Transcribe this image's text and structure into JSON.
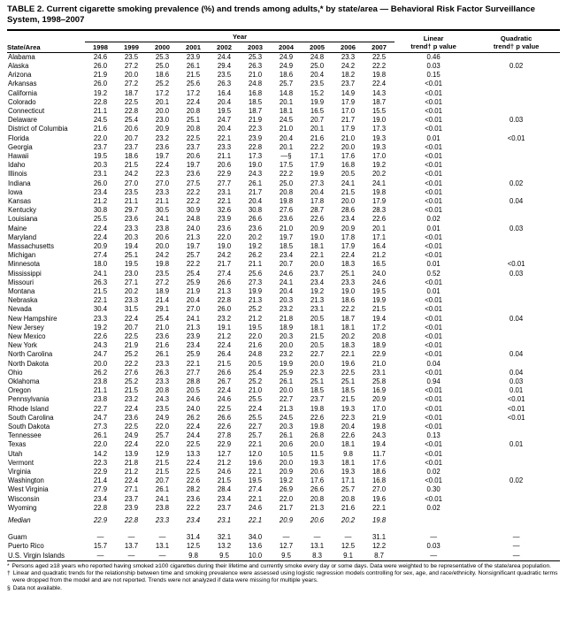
{
  "page": {
    "title": "TABLE 2. Current cigarette smoking prevalence (%) and trends among adults,* by state/area — Behavioral Risk Factor Surveillance System, 1998–2007"
  },
  "table": {
    "state_col_label": "State/Area",
    "year_group_label": "Year",
    "year_headers": [
      "1998",
      "1999",
      "2000",
      "2001",
      "2002",
      "2003",
      "2004",
      "2005",
      "2006",
      "2007"
    ],
    "linear_label": "Linear\ntrend† p value",
    "quadratic_label": "Quadratic\ntrend† p value",
    "rows": [
      {
        "state": "Alabama",
        "values": [
          "24.6",
          "23.5",
          "25.3",
          "23.9",
          "24.4",
          "25.3",
          "24.9",
          "24.8",
          "23.3",
          "22.5"
        ],
        "linear": "0.46",
        "quadratic": ""
      },
      {
        "state": "Alaska",
        "values": [
          "26.0",
          "27.2",
          "25.0",
          "26.1",
          "29.4",
          "26.3",
          "24.9",
          "25.0",
          "24.2",
          "22.2"
        ],
        "linear": "0.03",
        "quadratic": "0.02"
      },
      {
        "state": "Arizona",
        "values": [
          "21.9",
          "20.0",
          "18.6",
          "21.5",
          "23.5",
          "21.0",
          "18.6",
          "20.4",
          "18.2",
          "19.8"
        ],
        "linear": "0.15",
        "quadratic": ""
      },
      {
        "state": "Arkansas",
        "values": [
          "26.0",
          "27.2",
          "25.2",
          "25.6",
          "26.3",
          "24.8",
          "25.7",
          "23.5",
          "23.7",
          "22.4"
        ],
        "linear": "<0.01",
        "quadratic": ""
      },
      {
        "state": "California",
        "values": [
          "19.2",
          "18.7",
          "17.2",
          "17.2",
          "16.4",
          "16.8",
          "14.8",
          "15.2",
          "14.9",
          "14.3"
        ],
        "linear": "<0.01",
        "quadratic": ""
      },
      {
        "state": "Colorado",
        "values": [
          "22.8",
          "22.5",
          "20.1",
          "22.4",
          "20.4",
          "18.5",
          "20.1",
          "19.9",
          "17.9",
          "18.7"
        ],
        "linear": "<0.01",
        "quadratic": ""
      },
      {
        "state": "Connecticut",
        "values": [
          "21.1",
          "22.8",
          "20.0",
          "20.8",
          "19.5",
          "18.7",
          "18.1",
          "16.5",
          "17.0",
          "15.5"
        ],
        "linear": "<0.01",
        "quadratic": ""
      },
      {
        "state": "Delaware",
        "values": [
          "24.5",
          "25.4",
          "23.0",
          "25.1",
          "24.7",
          "21.9",
          "24.5",
          "20.7",
          "21.7",
          "19.0"
        ],
        "linear": "<0.01",
        "quadratic": "0.03"
      },
      {
        "state": "District of Columbia",
        "values": [
          "21.6",
          "20.6",
          "20.9",
          "20.8",
          "20.4",
          "22.3",
          "21.0",
          "20.1",
          "17.9",
          "17.3"
        ],
        "linear": "<0.01",
        "quadratic": ""
      },
      {
        "state": "Florida",
        "values": [
          "22.0",
          "20.7",
          "23.2",
          "22.5",
          "22.1",
          "23.9",
          "20.4",
          "21.6",
          "21.0",
          "19.3"
        ],
        "linear": "0.01",
        "quadratic": "<0.01"
      },
      {
        "state": "Georgia",
        "values": [
          "23.7",
          "23.7",
          "23.6",
          "23.7",
          "23.3",
          "22.8",
          "20.1",
          "22.2",
          "20.0",
          "19.3"
        ],
        "linear": "<0.01",
        "quadratic": ""
      },
      {
        "state": "Hawaii",
        "values": [
          "19.5",
          "18.6",
          "19.7",
          "20.6",
          "21.1",
          "17.3",
          "—§",
          "17.1",
          "17.6",
          "17.0"
        ],
        "linear": "<0.01",
        "quadratic": ""
      },
      {
        "state": "Idaho",
        "values": [
          "20.3",
          "21.5",
          "22.4",
          "19.7",
          "20.6",
          "19.0",
          "17.5",
          "17.9",
          "16.8",
          "19.2"
        ],
        "linear": "<0.01",
        "quadratic": ""
      },
      {
        "state": "Illinois",
        "values": [
          "23.1",
          "24.2",
          "22.3",
          "23.6",
          "22.9",
          "24.3",
          "22.2",
          "19.9",
          "20.5",
          "20.2"
        ],
        "linear": "<0.01",
        "quadratic": ""
      },
      {
        "state": "Indiana",
        "values": [
          "26.0",
          "27.0",
          "27.0",
          "27.5",
          "27.7",
          "26.1",
          "25.0",
          "27.3",
          "24.1",
          "24.1"
        ],
        "linear": "<0.01",
        "quadratic": "0.02"
      },
      {
        "state": "Iowa",
        "values": [
          "23.4",
          "23.5",
          "23.3",
          "22.2",
          "23.1",
          "21.7",
          "20.8",
          "20.4",
          "21.5",
          "19.8"
        ],
        "linear": "<0.01",
        "quadratic": ""
      },
      {
        "state": "Kansas",
        "values": [
          "21.2",
          "21.1",
          "21.1",
          "22.2",
          "22.1",
          "20.4",
          "19.8",
          "17.8",
          "20.0",
          "17.9"
        ],
        "linear": "<0.01",
        "quadratic": "0.04"
      },
      {
        "state": "Kentucky",
        "values": [
          "30.8",
          "29.7",
          "30.5",
          "30.9",
          "32.6",
          "30.8",
          "27.6",
          "28.7",
          "28.6",
          "28.3"
        ],
        "linear": "<0.01",
        "quadratic": ""
      },
      {
        "state": "Louisiana",
        "values": [
          "25.5",
          "23.6",
          "24.1",
          "24.8",
          "23.9",
          "26.6",
          "23.6",
          "22.6",
          "23.4",
          "22.6"
        ],
        "linear": "0.02",
        "quadratic": ""
      },
      {
        "state": "Maine",
        "values": [
          "22.4",
          "23.3",
          "23.8",
          "24.0",
          "23.6",
          "23.6",
          "21.0",
          "20.9",
          "20.9",
          "20.1"
        ],
        "linear": "0.01",
        "quadratic": "0.03"
      },
      {
        "state": "Maryland",
        "values": [
          "22.4",
          "20.3",
          "20.6",
          "21.3",
          "22.0",
          "20.2",
          "19.7",
          "19.0",
          "17.8",
          "17.1"
        ],
        "linear": "<0.01",
        "quadratic": ""
      },
      {
        "state": "Massachusetts",
        "values": [
          "20.9",
          "19.4",
          "20.0",
          "19.7",
          "19.0",
          "19.2",
          "18.5",
          "18.1",
          "17.9",
          "16.4"
        ],
        "linear": "<0.01",
        "quadratic": ""
      },
      {
        "state": "Michigan",
        "values": [
          "27.4",
          "25.1",
          "24.2",
          "25.7",
          "24.2",
          "26.2",
          "23.4",
          "22.1",
          "22.4",
          "21.2"
        ],
        "linear": "<0.01",
        "quadratic": ""
      },
      {
        "state": "Minnesota",
        "values": [
          "18.0",
          "19.5",
          "19.8",
          "22.2",
          "21.7",
          "21.1",
          "20.7",
          "20.0",
          "18.3",
          "16.5"
        ],
        "linear": "0.01",
        "quadratic": "<0.01"
      },
      {
        "state": "Mississippi",
        "values": [
          "24.1",
          "23.0",
          "23.5",
          "25.4",
          "27.4",
          "25.6",
          "24.6",
          "23.7",
          "25.1",
          "24.0"
        ],
        "linear": "0.52",
        "quadratic": "0.03"
      },
      {
        "state": "Missouri",
        "values": [
          "26.3",
          "27.1",
          "27.2",
          "25.9",
          "26.6",
          "27.3",
          "24.1",
          "23.4",
          "23.3",
          "24.6"
        ],
        "linear": "<0.01",
        "quadratic": ""
      },
      {
        "state": "Montana",
        "values": [
          "21.5",
          "20.2",
          "18.9",
          "21.9",
          "21.3",
          "19.9",
          "20.4",
          "19.2",
          "19.0",
          "19.5"
        ],
        "linear": "0.01",
        "quadratic": ""
      },
      {
        "state": "Nebraska",
        "values": [
          "22.1",
          "23.3",
          "21.4",
          "20.4",
          "22.8",
          "21.3",
          "20.3",
          "21.3",
          "18.6",
          "19.9"
        ],
        "linear": "<0.01",
        "quadratic": ""
      },
      {
        "state": "Nevada",
        "values": [
          "30.4",
          "31.5",
          "29.1",
          "27.0",
          "26.0",
          "25.2",
          "23.2",
          "23.1",
          "22.2",
          "21.5"
        ],
        "linear": "<0.01",
        "quadratic": ""
      },
      {
        "state": "New Hampshire",
        "values": [
          "23.3",
          "22.4",
          "25.4",
          "24.1",
          "23.2",
          "21.2",
          "21.8",
          "20.5",
          "18.7",
          "19.4"
        ],
        "linear": "<0.01",
        "quadratic": "0.04"
      },
      {
        "state": "New Jersey",
        "values": [
          "19.2",
          "20.7",
          "21.0",
          "21.3",
          "19.1",
          "19.5",
          "18.9",
          "18.1",
          "18.1",
          "17.2"
        ],
        "linear": "<0.01",
        "quadratic": ""
      },
      {
        "state": "New Mexico",
        "values": [
          "22.6",
          "22.5",
          "23.6",
          "23.9",
          "21.2",
          "22.0",
          "20.3",
          "21.5",
          "20.2",
          "20.8"
        ],
        "linear": "<0.01",
        "quadratic": ""
      },
      {
        "state": "New York",
        "values": [
          "24.3",
          "21.9",
          "21.6",
          "23.4",
          "22.4",
          "21.6",
          "20.0",
          "20.5",
          "18.3",
          "18.9"
        ],
        "linear": "<0.01",
        "quadratic": ""
      },
      {
        "state": "North Carolina",
        "values": [
          "24.7",
          "25.2",
          "26.1",
          "25.9",
          "26.4",
          "24.8",
          "23.2",
          "22.7",
          "22.1",
          "22.9"
        ],
        "linear": "<0.01",
        "quadratic": "0.04"
      },
      {
        "state": "North Dakota",
        "values": [
          "20.0",
          "22.2",
          "23.3",
          "22.1",
          "21.5",
          "20.5",
          "19.9",
          "20.0",
          "19.6",
          "21.0"
        ],
        "linear": "0.04",
        "quadratic": ""
      },
      {
        "state": "Ohio",
        "values": [
          "26.2",
          "27.6",
          "26.3",
          "27.7",
          "26.6",
          "25.4",
          "25.9",
          "22.3",
          "22.5",
          "23.1"
        ],
        "linear": "<0.01",
        "quadratic": "0.04"
      },
      {
        "state": "Oklahoma",
        "values": [
          "23.8",
          "25.2",
          "23.3",
          "28.8",
          "26.7",
          "25.2",
          "26.1",
          "25.1",
          "25.1",
          "25.8"
        ],
        "linear": "0.94",
        "quadratic": "0.03"
      },
      {
        "state": "Oregon",
        "values": [
          "21.1",
          "21.5",
          "20.8",
          "20.5",
          "22.4",
          "21.0",
          "20.0",
          "18.5",
          "18.5",
          "16.9"
        ],
        "linear": "<0.01",
        "quadratic": "0.01"
      },
      {
        "state": "Pennsylvania",
        "values": [
          "23.8",
          "23.2",
          "24.3",
          "24.6",
          "24.6",
          "25.5",
          "22.7",
          "23.7",
          "21.5",
          "20.9"
        ],
        "linear": "<0.01",
        "quadratic": "<0.01"
      },
      {
        "state": "Rhode Island",
        "values": [
          "22.7",
          "22.4",
          "23.5",
          "24.0",
          "22.5",
          "22.4",
          "21.3",
          "19.8",
          "19.3",
          "17.0"
        ],
        "linear": "<0.01",
        "quadratic": "<0.01"
      },
      {
        "state": "South Carolina",
        "values": [
          "24.7",
          "23.6",
          "24.9",
          "26.2",
          "26.6",
          "25.5",
          "24.5",
          "22.6",
          "22.3",
          "21.9"
        ],
        "linear": "<0.01",
        "quadratic": "<0.01"
      },
      {
        "state": "South Dakota",
        "values": [
          "27.3",
          "22.5",
          "22.0",
          "22.4",
          "22.6",
          "22.7",
          "20.3",
          "19.8",
          "20.4",
          "19.8"
        ],
        "linear": "<0.01",
        "quadratic": ""
      },
      {
        "state": "Tennessee",
        "values": [
          "26.1",
          "24.9",
          "25.7",
          "24.4",
          "27.8",
          "25.7",
          "26.1",
          "26.8",
          "22.6",
          "24.3"
        ],
        "linear": "0.13",
        "quadratic": ""
      },
      {
        "state": "Texas",
        "values": [
          "22.0",
          "22.4",
          "22.0",
          "22.5",
          "22.9",
          "22.1",
          "20.6",
          "20.0",
          "18.1",
          "19.4"
        ],
        "linear": "<0.01",
        "quadratic": "0.01"
      },
      {
        "state": "Utah",
        "values": [
          "14.2",
          "13.9",
          "12.9",
          "13.3",
          "12.7",
          "12.0",
          "10.5",
          "11.5",
          "9.8",
          "11.7"
        ],
        "linear": "<0.01",
        "quadratic": ""
      },
      {
        "state": "Vermont",
        "values": [
          "22.3",
          "21.8",
          "21.5",
          "22.4",
          "21.2",
          "19.6",
          "20.0",
          "19.3",
          "18.1",
          "17.6"
        ],
        "linear": "<0.01",
        "quadratic": ""
      },
      {
        "state": "Virginia",
        "values": [
          "22.9",
          "21.2",
          "21.5",
          "22.5",
          "24.6",
          "22.1",
          "20.9",
          "20.6",
          "19.3",
          "18.6"
        ],
        "linear": "0.02",
        "quadratic": ""
      },
      {
        "state": "Washington",
        "values": [
          "21.4",
          "22.4",
          "20.7",
          "22.6",
          "21.5",
          "19.5",
          "19.2",
          "17.6",
          "17.1",
          "16.8"
        ],
        "linear": "<0.01",
        "quadratic": "0.02"
      },
      {
        "state": "West Virginia",
        "values": [
          "27.9",
          "27.1",
          "26.1",
          "28.2",
          "28.4",
          "27.4",
          "26.9",
          "26.6",
          "25.7",
          "27.0"
        ],
        "linear": "0.30",
        "quadratic": ""
      },
      {
        "state": "Wisconsin",
        "values": [
          "23.4",
          "23.7",
          "24.1",
          "23.6",
          "23.4",
          "22.1",
          "22.0",
          "20.8",
          "20.8",
          "19.6"
        ],
        "linear": "<0.01",
        "quadratic": ""
      },
      {
        "state": "Wyoming",
        "values": [
          "22.8",
          "23.9",
          "23.8",
          "22.2",
          "23.7",
          "24.6",
          "21.7",
          "21.3",
          "21.6",
          "22.1"
        ],
        "linear": "0.02",
        "quadratic": ""
      }
    ],
    "median": {
      "state": "Median",
      "values": [
        "22.9",
        "22.8",
        "23.3",
        "23.4",
        "23.1",
        "22.1",
        "20.9",
        "20.6",
        "20.2",
        "19.8"
      ],
      "linear": "",
      "quadratic": ""
    },
    "territories": [
      {
        "state": "Guam",
        "values": [
          "—",
          "—",
          "—",
          "31.4",
          "32.1",
          "34.0",
          "—",
          "—",
          "—",
          "31.1"
        ],
        "linear": "—",
        "quadratic": "—"
      },
      {
        "state": "Puerto Rico",
        "values": [
          "15.7",
          "13.7",
          "13.1",
          "12.5",
          "13.2",
          "13.6",
          "12.7",
          "13.1",
          "12.5",
          "12.2"
        ],
        "linear": "0.03",
        "quadratic": "—"
      },
      {
        "state": "U.S. Virgin Islands",
        "values": [
          "—",
          "—",
          "—",
          "9.8",
          "9.5",
          "10.0",
          "9.5",
          "8.3",
          "9.1",
          "8.7"
        ],
        "linear": "—",
        "quadratic": "—"
      }
    ]
  },
  "footnotes": [
    {
      "marker": "*",
      "text": "Persons aged ≥18 years who reported having smoked ≥100 cigarettes during their lifetime and currently smoke every day or some days. Data were weighted to be representative of the state/area population."
    },
    {
      "marker": "†",
      "text": "Linear and quadratic trends for the relationship between time and smoking prevalence were assessed using logistic regression models controlling for sex, age, and race/ethnicity. Nonsignificant quadratic terms were dropped from the model and are not reported. Trends were not analyzed if data were missing for multiple years."
    },
    {
      "marker": "§",
      "text": "Data not available."
    }
  ]
}
